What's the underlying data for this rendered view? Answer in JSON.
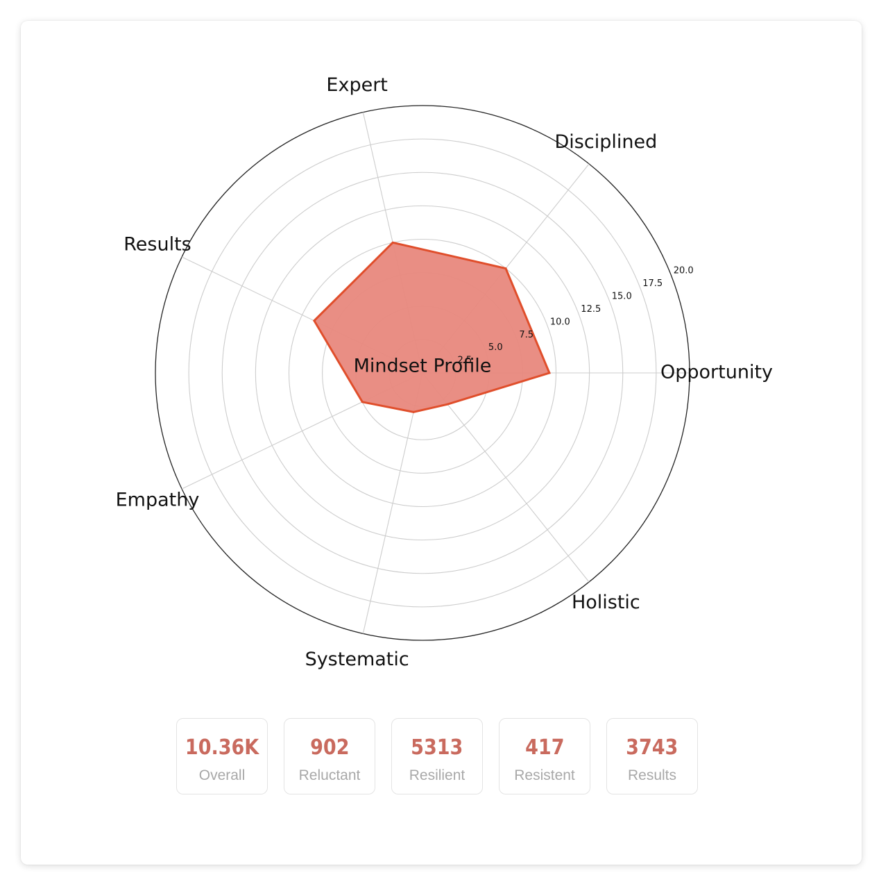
{
  "chart_data": {
    "type": "radar",
    "title": "Mindset Profile",
    "axes": [
      "Opportunity",
      "Disciplined",
      "Expert",
      "Results",
      "Empathy",
      "Systematic",
      "Holistic"
    ],
    "values": [
      9.5,
      10.0,
      10.0,
      9.0,
      5.0,
      3.0,
      3.0
    ],
    "rlim": [
      0,
      20
    ],
    "r_ticks": [
      "2.5",
      "5.0",
      "7.5",
      "10.0",
      "12.5",
      "15.0",
      "17.5",
      "20.0"
    ],
    "grid": true,
    "fill_color": "#e8887d",
    "line_color": "#e04e2b"
  },
  "stats": [
    {
      "value": "10.36K",
      "label": "Overall"
    },
    {
      "value": "902",
      "label": "Reluctant"
    },
    {
      "value": "5313",
      "label": "Resilient"
    },
    {
      "value": "417",
      "label": "Resistent"
    },
    {
      "value": "3743",
      "label": "Results"
    }
  ]
}
